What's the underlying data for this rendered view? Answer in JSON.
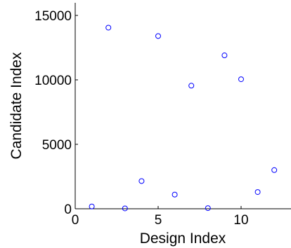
{
  "chart_data": {
    "type": "scatter",
    "title": "",
    "xlabel": "Design Index",
    "ylabel": "Candidate Index",
    "xlim": [
      0,
      13
    ],
    "ylim": [
      0,
      15500
    ],
    "xticks": [
      0,
      5,
      10
    ],
    "xtick_labels": [
      "0",
      "5",
      "10"
    ],
    "yticks": [
      0,
      5000,
      10000,
      15000
    ],
    "ytick_labels": [
      "0",
      "5000",
      "10000",
      "15000"
    ],
    "grid": false,
    "marker": "circle-open",
    "series": [
      {
        "color": "#0000ff",
        "x": [
          1,
          2,
          3,
          4,
          5,
          6,
          7,
          8,
          9,
          10,
          11,
          12
        ],
        "y": [
          180,
          14050,
          30,
          2150,
          13400,
          1100,
          9550,
          50,
          11900,
          10050,
          1300,
          3000
        ]
      }
    ]
  }
}
